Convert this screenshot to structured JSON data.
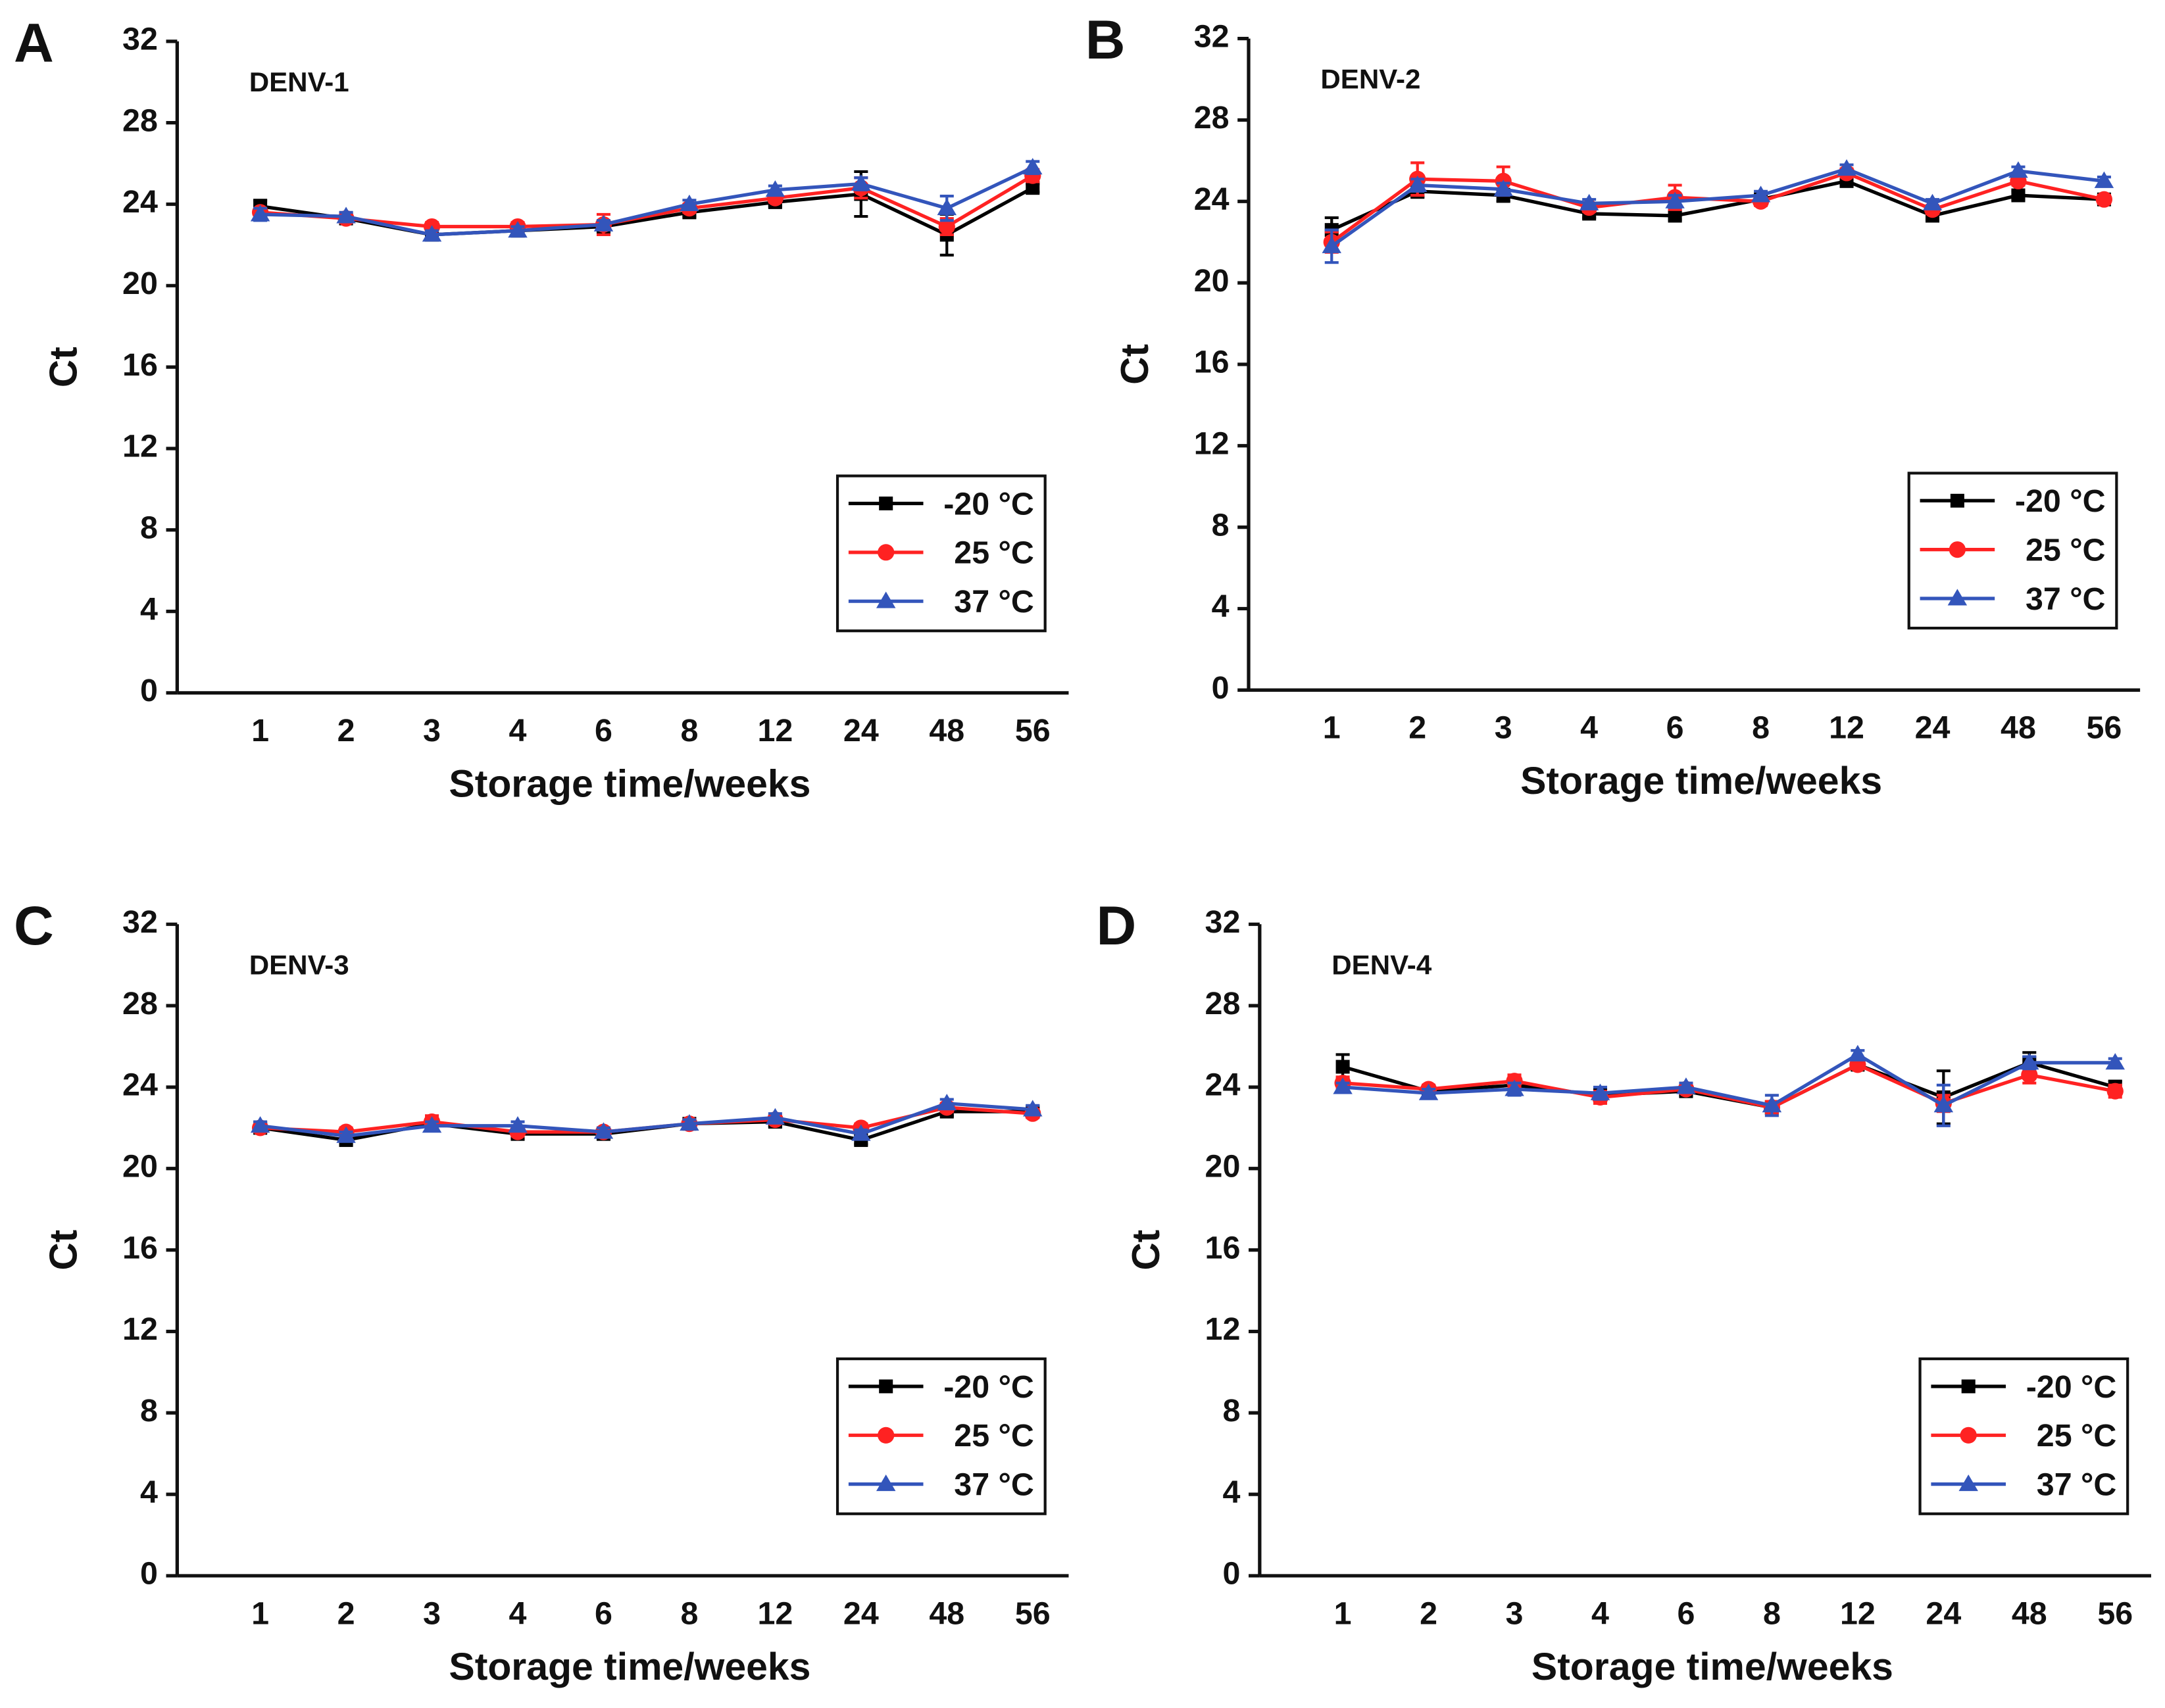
{
  "chart_data": [
    {
      "type": "line",
      "panel": "A",
      "title": "DENV-1",
      "x_label": "Storage time/weeks",
      "y_label": "Ct",
      "categories": [
        "1",
        "2",
        "3",
        "4",
        "6",
        "8",
        "12",
        "24",
        "48",
        "56"
      ],
      "ylim": [
        0,
        32
      ],
      "yticks": [
        0,
        4,
        8,
        12,
        16,
        20,
        24,
        28,
        32
      ],
      "legend": "lower right",
      "series": [
        {
          "name": "-20 °C",
          "color": "#000000",
          "marker": "square",
          "values": [
            23.9,
            23.3,
            22.5,
            22.7,
            22.9,
            23.6,
            24.1,
            24.5,
            22.5,
            24.8
          ],
          "errors": [
            0.3,
            0.2,
            0.2,
            0.2,
            0.2,
            0.2,
            0.2,
            1.1,
            1.0,
            0.2
          ]
        },
        {
          "name": "25 °C",
          "color": "#ff2222",
          "marker": "circle",
          "values": [
            23.6,
            23.3,
            22.9,
            22.9,
            23.0,
            23.8,
            24.3,
            24.8,
            22.9,
            25.4
          ],
          "errors": [
            0.2,
            0.2,
            0.2,
            0.2,
            0.5,
            0.2,
            0.2,
            0.5,
            0.4,
            0.3
          ]
        },
        {
          "name": "37 °C",
          "color": "#3355bb",
          "marker": "triangle",
          "values": [
            23.5,
            23.4,
            22.5,
            22.7,
            23.0,
            24.0,
            24.7,
            25.0,
            23.8,
            25.8
          ],
          "errors": [
            0.3,
            0.2,
            0.2,
            0.2,
            0.2,
            0.2,
            0.2,
            0.3,
            0.6,
            0.3
          ]
        }
      ]
    },
    {
      "type": "line",
      "panel": "B",
      "title": "DENV-2",
      "x_label": "Storage time/weeks",
      "y_label": "Ct",
      "categories": [
        "1",
        "2",
        "3",
        "4",
        "6",
        "8",
        "12",
        "24",
        "48",
        "56"
      ],
      "ylim": [
        0,
        32
      ],
      "yticks": [
        0,
        4,
        8,
        12,
        16,
        20,
        24,
        28,
        32
      ],
      "legend": "lower right",
      "series": [
        {
          "name": "-20 °C",
          "color": "#000000",
          "marker": "square",
          "values": [
            22.6,
            24.5,
            24.3,
            23.4,
            23.3,
            24.1,
            25.0,
            23.3,
            24.3,
            24.1
          ],
          "errors": [
            0.6,
            0.3,
            0.3,
            0.2,
            0.2,
            0.2,
            0.2,
            0.2,
            0.2,
            0.2
          ]
        },
        {
          "name": "25 °C",
          "color": "#ff2222",
          "marker": "circle",
          "values": [
            22.0,
            25.1,
            25.0,
            23.7,
            24.2,
            24.0,
            25.4,
            23.6,
            25.0,
            24.1
          ],
          "errors": [
            0.5,
            0.8,
            0.7,
            0.2,
            0.6,
            0.2,
            0.2,
            0.2,
            0.2,
            0.2
          ]
        },
        {
          "name": "37 °C",
          "color": "#3355bb",
          "marker": "triangle",
          "values": [
            21.8,
            24.8,
            24.6,
            23.9,
            24.0,
            24.3,
            25.6,
            23.9,
            25.5,
            25.0
          ],
          "errors": [
            0.8,
            0.3,
            0.3,
            0.2,
            0.3,
            0.2,
            0.2,
            0.2,
            0.2,
            0.2
          ]
        }
      ]
    },
    {
      "type": "line",
      "panel": "C",
      "title": "DENV-3",
      "x_label": "Storage time/weeks",
      "y_label": "Ct",
      "categories": [
        "1",
        "2",
        "3",
        "4",
        "6",
        "8",
        "12",
        "24",
        "48",
        "56"
      ],
      "ylim": [
        0,
        32
      ],
      "yticks": [
        0,
        4,
        8,
        12,
        16,
        20,
        24,
        28,
        32
      ],
      "legend": "lower right",
      "series": [
        {
          "name": "-20 °C",
          "color": "#000000",
          "marker": "square",
          "values": [
            22.0,
            21.4,
            22.2,
            21.7,
            21.7,
            22.2,
            22.3,
            21.4,
            22.8,
            22.8
          ],
          "errors": [
            0.2,
            0.2,
            0.2,
            0.2,
            0.2,
            0.2,
            0.2,
            0.2,
            0.2,
            0.2
          ]
        },
        {
          "name": "25 °C",
          "color": "#ff2222",
          "marker": "circle",
          "values": [
            22.0,
            21.8,
            22.3,
            21.8,
            21.8,
            22.2,
            22.4,
            22.0,
            23.0,
            22.7
          ],
          "errors": [
            0.2,
            0.2,
            0.3,
            0.2,
            0.2,
            0.2,
            0.2,
            0.2,
            0.2,
            0.2
          ]
        },
        {
          "name": "37 °C",
          "color": "#3355bb",
          "marker": "triangle",
          "values": [
            22.1,
            21.6,
            22.1,
            22.1,
            21.8,
            22.2,
            22.5,
            21.7,
            23.2,
            22.9
          ],
          "errors": [
            0.2,
            0.2,
            0.2,
            0.2,
            0.2,
            0.2,
            0.2,
            0.2,
            0.2,
            0.2
          ]
        }
      ]
    },
    {
      "type": "line",
      "panel": "D",
      "title": "DENV-4",
      "x_label": "Storage time/weeks",
      "y_label": "Ct",
      "categories": [
        "1",
        "2",
        "3",
        "4",
        "6",
        "8",
        "12",
        "24",
        "48",
        "56"
      ],
      "ylim": [
        0,
        32
      ],
      "yticks": [
        0,
        4,
        8,
        12,
        16,
        20,
        24,
        28,
        32
      ],
      "legend": "lower right",
      "series": [
        {
          "name": "-20 °C",
          "color": "#000000",
          "marker": "square",
          "values": [
            25.0,
            23.8,
            24.1,
            23.6,
            23.8,
            23.0,
            25.1,
            23.5,
            25.2,
            24.0
          ],
          "errors": [
            0.6,
            0.2,
            0.3,
            0.3,
            0.2,
            0.3,
            0.2,
            1.3,
            0.5,
            0.3
          ]
        },
        {
          "name": "25 °C",
          "color": "#ff2222",
          "marker": "circle",
          "values": [
            24.2,
            23.9,
            24.3,
            23.5,
            23.9,
            23.0,
            25.1,
            23.2,
            24.6,
            23.8
          ],
          "errors": [
            0.3,
            0.2,
            0.3,
            0.3,
            0.2,
            0.3,
            0.2,
            0.4,
            0.4,
            0.3
          ]
        },
        {
          "name": "37 °C",
          "color": "#3355bb",
          "marker": "triangle",
          "values": [
            24.0,
            23.7,
            23.9,
            23.7,
            24.0,
            23.1,
            25.6,
            23.1,
            25.2,
            25.2
          ],
          "errors": [
            0.2,
            0.2,
            0.3,
            0.3,
            0.2,
            0.5,
            0.2,
            1.0,
            0.3,
            0.2
          ]
        }
      ]
    }
  ]
}
